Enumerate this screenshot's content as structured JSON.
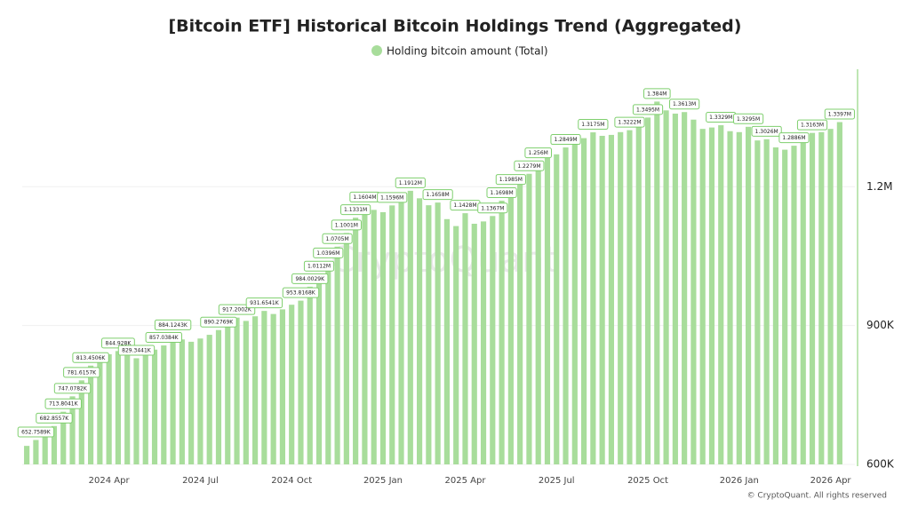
{
  "chart_data": {
    "type": "bar",
    "title": "[Bitcoin ETF] Historical Bitcoin Holdings Trend (Aggregated)",
    "watermark": "CryptoQuant",
    "footer": "© CryptoQuant. All rights reserved",
    "categories": [
      null,
      null,
      null,
      null,
      null,
      null,
      null,
      null,
      null,
      "2024 Apr",
      null,
      null,
      null,
      null,
      null,
      null,
      null,
      null,
      null,
      "2024 Jul",
      null,
      null,
      null,
      null,
      null,
      null,
      null,
      null,
      null,
      "2024 Oct",
      null,
      null,
      null,
      null,
      null,
      null,
      null,
      null,
      null,
      "2025 Jan",
      null,
      null,
      null,
      null,
      null,
      null,
      null,
      null,
      "2025 Apr",
      null,
      null,
      null,
      null,
      null,
      null,
      null,
      null,
      null,
      "2025 Jul",
      null,
      null,
      null,
      null,
      null,
      null,
      null,
      null,
      null,
      "2025 Oct",
      null,
      null,
      null,
      null,
      null,
      null,
      null,
      null,
      null,
      "2026 Jan",
      null,
      null,
      null,
      null,
      null,
      null,
      null,
      null,
      null,
      "2026 Apr",
      null
    ],
    "series": [
      {
        "name": "Holding bitcoin amount (Total)",
        "color": "#a8dd9b",
        "values": [
          640000,
          652758.9,
          668000,
          682855.7,
          713804.1,
          747078.2,
          781615.7,
          813450.6,
          825000,
          838000,
          844928,
          835000,
          829344.1,
          838000,
          848000,
          857038.4,
          884124.3,
          870000,
          865000,
          872000,
          880000,
          890276.9,
          905000,
          917200.2,
          910000,
          920000,
          931654.1,
          925000,
          935000,
          945000,
          953816.8,
          984002.9,
          1011200,
          1039600,
          1070500,
          1100100,
          1133100,
          1160400,
          1150000,
          1145000,
          1159600,
          1170000,
          1191200,
          1175000,
          1160000,
          1165800,
          1130000,
          1115000,
          1142800,
          1120000,
          1125000,
          1136700,
          1169800,
          1198500,
          1210000,
          1227900,
          1256000,
          1262000,
          1270000,
          1284900,
          1295000,
          1305000,
          1317500,
          1310000,
          1312000,
          1318000,
          1322200,
          1335000,
          1349500,
          1384000,
          1365000,
          1358000,
          1361300,
          1345000,
          1325000,
          1328000,
          1332900,
          1320000,
          1318000,
          1329500,
          1300000,
          1302600,
          1285000,
          1280000,
          1288600,
          1300000,
          1316300,
          1318000,
          1325000,
          1339700
        ],
        "value_labels": [
          null,
          "652.7589K",
          null,
          "682.8557K",
          "713.8041K",
          "747.0782K",
          "781.6157K",
          "813.4506K",
          null,
          null,
          "844.928K",
          null,
          "829.3441K",
          null,
          null,
          "857.0384K",
          "884.1243K",
          null,
          null,
          null,
          null,
          "890.2769K",
          null,
          "917.2002K",
          null,
          null,
          "931.6541K",
          null,
          null,
          null,
          "953.8168K",
          "984.0029K",
          "1.0112M",
          "1.0396M",
          "1.0705M",
          "1.1001M",
          "1.1331M",
          "1.1604M",
          null,
          null,
          "1.1596M",
          null,
          "1.1912M",
          null,
          null,
          "1.1658M",
          null,
          null,
          "1.1428M",
          null,
          null,
          "1.1367M",
          "1.1698M",
          "1.1985M",
          null,
          "1.2279M",
          "1.256M",
          null,
          null,
          "1.2849M",
          null,
          null,
          "1.3175M",
          null,
          null,
          null,
          "1.3222M",
          null,
          "1.3495M",
          "1.384M",
          null,
          null,
          "1.3613M",
          null,
          null,
          null,
          "1.3329M",
          null,
          null,
          "1.3295M",
          null,
          "1.3026M",
          null,
          null,
          "1.2886M",
          null,
          "1.3163M",
          null,
          null,
          "1.3397M"
        ]
      }
    ],
    "ylim": [
      600000,
      1450000
    ],
    "yticks": [
      {
        "value": 600000,
        "label": "600K"
      },
      {
        "value": 900000,
        "label": "900K"
      },
      {
        "value": 1200000,
        "label": "1.2M"
      }
    ],
    "grid": true,
    "legend": "top"
  }
}
